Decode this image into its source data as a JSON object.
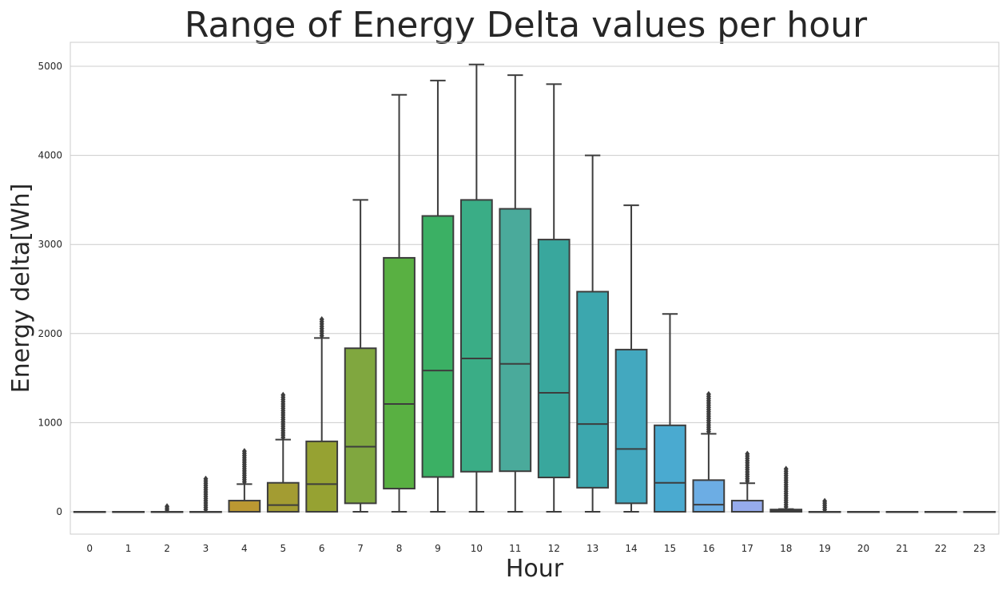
{
  "chart_data": {
    "type": "box",
    "title": "Range of Energy Delta values per hour",
    "xlabel": "Hour",
    "ylabel": "Energy delta[Wh]",
    "ylim": [
      -250,
      5280
    ],
    "yticks": [
      0,
      1000,
      2000,
      3000,
      4000,
      5000
    ],
    "grid": "horizontal",
    "categories": [
      "0",
      "1",
      "2",
      "3",
      "4",
      "5",
      "6",
      "7",
      "8",
      "9",
      "10",
      "11",
      "12",
      "13",
      "14",
      "15",
      "16",
      "17",
      "18",
      "19",
      "20",
      "21",
      "22",
      "23"
    ],
    "boxes": [
      {
        "min": 0,
        "q1": 0,
        "median": 0,
        "q3": 0,
        "max": 0,
        "outliers_max": 0,
        "color": "#f77189"
      },
      {
        "min": 0,
        "q1": 0,
        "median": 0,
        "q3": 0,
        "max": 0,
        "outliers_max": 0,
        "color": "#f7754f"
      },
      {
        "min": 0,
        "q1": 0,
        "median": 0,
        "q3": 0,
        "max": 0,
        "outliers_max": 60,
        "color": "#dd8a31"
      },
      {
        "min": 0,
        "q1": 0,
        "median": 0,
        "q3": 0,
        "max": 0,
        "outliers_max": 370,
        "color": "#cd9030"
      },
      {
        "min": 0,
        "q1": 0,
        "median": 0,
        "q3": 125,
        "max": 310,
        "outliers_max": 680,
        "color": "#bb9832"
      },
      {
        "min": 0,
        "q1": 0,
        "median": 75,
        "q3": 325,
        "max": 810,
        "outliers_max": 1310,
        "color": "#a39c32"
      },
      {
        "min": 0,
        "q1": 0,
        "median": 310,
        "q3": 790,
        "max": 1950,
        "outliers_max": 2160,
        "color": "#96a232"
      },
      {
        "min": 0,
        "q1": 95,
        "median": 730,
        "q3": 1835,
        "max": 3500,
        "outliers_max": 3500,
        "color": "#80a73f"
      },
      {
        "min": 0,
        "q1": 260,
        "median": 1210,
        "q3": 2850,
        "max": 4680,
        "outliers_max": 4680,
        "color": "#59b042"
      },
      {
        "min": 0,
        "q1": 390,
        "median": 1585,
        "q3": 3320,
        "max": 4840,
        "outliers_max": 4840,
        "color": "#3bb064"
      },
      {
        "min": 0,
        "q1": 450,
        "median": 1720,
        "q3": 3500,
        "max": 5020,
        "outliers_max": 5020,
        "color": "#3aad86"
      },
      {
        "min": 0,
        "q1": 455,
        "median": 1660,
        "q3": 3400,
        "max": 4900,
        "outliers_max": 4900,
        "color": "#4aaa9b"
      },
      {
        "min": 0,
        "q1": 385,
        "median": 1335,
        "q3": 3055,
        "max": 4800,
        "outliers_max": 4800,
        "color": "#39a79d"
      },
      {
        "min": 0,
        "q1": 270,
        "median": 985,
        "q3": 2470,
        "max": 4000,
        "outliers_max": 4000,
        "color": "#3ca7ae"
      },
      {
        "min": 0,
        "q1": 95,
        "median": 705,
        "q3": 1820,
        "max": 3440,
        "outliers_max": 3440,
        "color": "#43a8bf"
      },
      {
        "min": 0,
        "q1": 0,
        "median": 325,
        "q3": 970,
        "max": 2220,
        "outliers_max": 2220,
        "color": "#4aaad0"
      },
      {
        "min": 0,
        "q1": 0,
        "median": 80,
        "q3": 355,
        "max": 875,
        "outliers_max": 1320,
        "color": "#6cade4"
      },
      {
        "min": 0,
        "q1": 0,
        "median": 0,
        "q3": 125,
        "max": 320,
        "outliers_max": 650,
        "color": "#96abec"
      },
      {
        "min": 0,
        "q1": 0,
        "median": 10,
        "q3": 25,
        "max": 30,
        "outliers_max": 480,
        "color": "#b39fed"
      },
      {
        "min": 0,
        "q1": 0,
        "median": 0,
        "q3": 0,
        "max": 0,
        "outliers_max": 120,
        "color": "#c896ed"
      },
      {
        "min": 0,
        "q1": 0,
        "median": 0,
        "q3": 0,
        "max": 0,
        "outliers_max": 0,
        "color": "#e08cec"
      },
      {
        "min": 0,
        "q1": 0,
        "median": 0,
        "q3": 0,
        "max": 0,
        "outliers_max": 0,
        "color": "#f17bd2"
      },
      {
        "min": 0,
        "q1": 0,
        "median": 0,
        "q3": 0,
        "max": 0,
        "outliers_max": 0,
        "color": "#f47db8"
      },
      {
        "min": 0,
        "q1": 0,
        "median": 0,
        "q3": 0,
        "max": 0,
        "outliers_max": 0,
        "color": "#f581a3"
      }
    ]
  }
}
